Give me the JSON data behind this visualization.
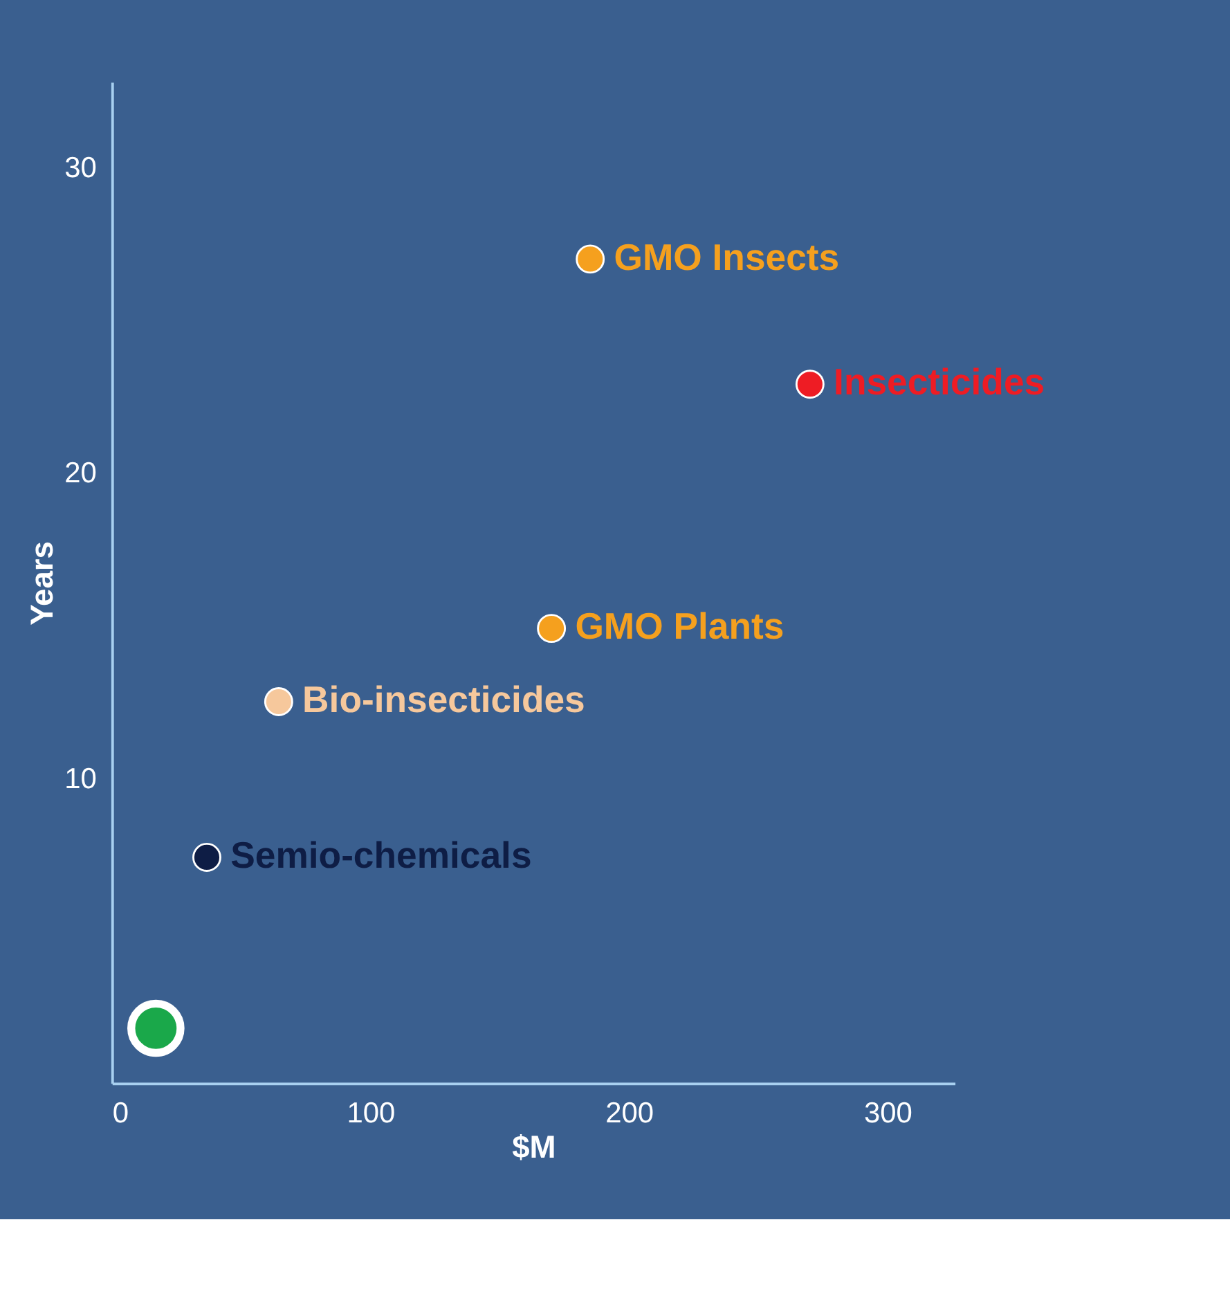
{
  "chart_data": {
    "type": "scatter",
    "xlabel": "$M",
    "ylabel": "Years",
    "xlim": [
      0,
      326
    ],
    "ylim": [
      0,
      32.8
    ],
    "xticks": [
      0,
      100,
      200,
      300
    ],
    "yticks": [
      10,
      20,
      30
    ],
    "grid": false,
    "legend": false,
    "marker": "circle",
    "series": [
      {
        "name": "GMO Insects",
        "color": "#f5a01e",
        "x": [
          185
        ],
        "values": [
          27.0
        ]
      },
      {
        "name": "Insecticides",
        "color": "#ee1c24",
        "x": [
          270
        ],
        "values": [
          22.9
        ]
      },
      {
        "name": "GMO Plants",
        "color": "#f5a01e",
        "x": [
          170
        ],
        "values": [
          14.9
        ]
      },
      {
        "name": "Bio-insecticides",
        "color": "#f6c89c",
        "x": [
          64.5
        ],
        "values": [
          12.5
        ]
      },
      {
        "name": "Semio-chemicals",
        "color": "#0e1d45",
        "x": [
          36.7
        ],
        "values": [
          7.4
        ]
      },
      {
        "color": "#1aa84a",
        "x": [
          17
        ],
        "values": [
          1.8
        ]
      }
    ]
  }
}
